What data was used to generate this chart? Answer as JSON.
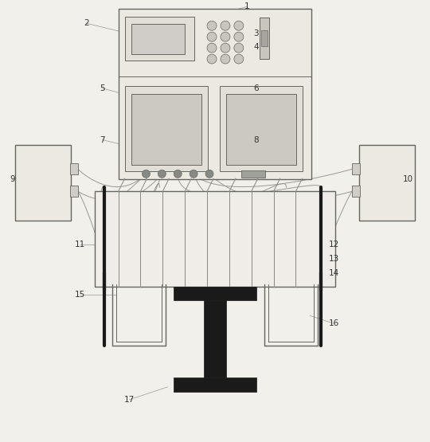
{
  "bg_color": "#f2f0eb",
  "line_color": "#666660",
  "dark_color": "#1a1a1a",
  "label_color": "#333333",
  "wire_color": "#999994"
}
